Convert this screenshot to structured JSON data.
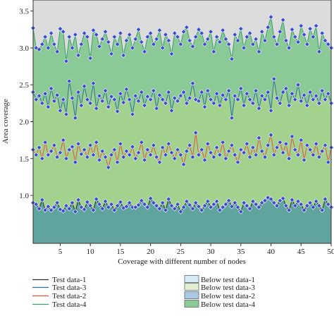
{
  "chart_data": {
    "type": "area",
    "title": "",
    "xlabel": "Coverage with different number of nodes",
    "ylabel": "Area coverage",
    "xlim": [
      0.5,
      50
    ],
    "ylim": [
      0.35,
      3.65
    ],
    "xticks": [
      "5",
      "10",
      "15",
      "20",
      "25",
      "30",
      "35",
      "40",
      "45",
      "50"
    ],
    "yticks": [
      "1.0",
      "1.5",
      "2.0",
      "2.5",
      "3.0",
      "3.5"
    ],
    "grid": false,
    "legend_position": "bottom",
    "background_color": "#dcdcdc",
    "x": [
      0.5,
      1,
      1.5,
      2,
      2.5,
      3,
      3.5,
      4,
      4.5,
      5,
      5.5,
      6,
      6.5,
      7,
      7.5,
      8,
      8.5,
      9,
      9.5,
      10,
      10.5,
      11,
      11.5,
      12,
      12.5,
      13,
      13.5,
      14,
      14.5,
      15,
      15.5,
      16,
      16.5,
      17,
      17.5,
      18,
      18.5,
      19,
      19.5,
      20,
      20.5,
      21,
      21.5,
      22,
      22.5,
      23,
      23.5,
      24,
      24.5,
      25,
      25.5,
      26,
      26.5,
      27,
      27.5,
      28,
      28.5,
      29,
      29.5,
      30,
      30.5,
      31,
      31.5,
      32,
      32.5,
      33,
      33.5,
      34,
      34.5,
      35,
      35.5,
      36,
      36.5,
      37,
      37.5,
      38,
      38.5,
      39,
      39.5,
      40,
      40.5,
      41,
      41.5,
      42,
      42.5,
      43,
      43.5,
      44,
      44.5,
      45,
      45.5,
      46,
      46.5,
      47,
      47.5,
      48,
      48.5,
      49,
      49.5,
      50
    ],
    "series": [
      {
        "name": "Test data-1",
        "line_color": "#2b2b2b",
        "fill_color": "#5fa49d",
        "values": [
          0.9,
          0.88,
          0.82,
          0.94,
          0.8,
          0.85,
          0.8,
          0.84,
          0.9,
          0.81,
          0.79,
          0.86,
          0.82,
          0.9,
          0.78,
          0.94,
          0.84,
          0.81,
          0.91,
          0.86,
          0.8,
          0.95,
          0.88,
          0.82,
          0.92,
          0.84,
          0.88,
          0.8,
          0.86,
          0.91,
          0.83,
          0.85,
          0.9,
          0.84,
          0.84,
          0.87,
          0.93,
          0.88,
          0.84,
          0.96,
          0.9,
          0.86,
          0.82,
          0.9,
          0.8,
          0.95,
          0.86,
          0.82,
          0.88,
          0.78,
          0.84,
          0.92,
          0.87,
          0.82,
          0.9,
          0.85,
          0.8,
          0.86,
          0.92,
          0.84,
          0.88,
          0.92,
          0.8,
          0.84,
          0.88,
          0.93,
          0.85,
          0.9,
          0.84,
          0.78,
          0.9,
          0.86,
          0.82,
          0.92,
          0.88,
          0.84,
          0.9,
          0.93,
          0.97,
          0.95,
          0.9,
          0.86,
          0.93,
          0.96,
          0.86,
          0.8,
          0.94,
          0.86,
          0.92,
          0.88,
          0.8,
          0.86,
          0.9,
          0.84,
          0.92,
          0.86,
          0.8,
          0.95,
          0.88,
          0.84
        ]
      },
      {
        "name": "Test data-3",
        "line_color": "#2d6fa0",
        "fill_color": "#a2d28e",
        "values": [
          2.4,
          2.3,
          2.35,
          2.25,
          2.38,
          2.2,
          2.45,
          2.28,
          2.36,
          2.15,
          2.3,
          2.1,
          2.55,
          2.32,
          2.05,
          2.4,
          2.22,
          2.48,
          2.3,
          2.25,
          2.52,
          2.18,
          2.35,
          2.28,
          2.42,
          2.2,
          2.34,
          2.3,
          2.14,
          2.38,
          2.26,
          2.44,
          2.3,
          2.1,
          2.35,
          2.28,
          2.4,
          2.22,
          2.34,
          2.3,
          2.42,
          2.18,
          2.36,
          2.3,
          2.25,
          2.4,
          2.15,
          2.32,
          2.28,
          2.35,
          2.4,
          2.25,
          2.32,
          2.52,
          2.3,
          2.28,
          2.4,
          2.2,
          2.42,
          2.3,
          2.25,
          2.38,
          2.22,
          2.36,
          2.3,
          2.42,
          2.05,
          2.35,
          2.3,
          2.45,
          2.22,
          2.38,
          2.3,
          2.25,
          2.42,
          2.18,
          2.35,
          2.3,
          2.4,
          2.15,
          2.58,
          2.32,
          2.25,
          2.4,
          2.45,
          2.22,
          2.38,
          2.3,
          2.5,
          2.28,
          2.36,
          2.22,
          2.4,
          2.3,
          2.35,
          2.25,
          2.42,
          2.3,
          2.38,
          2.25
        ]
      },
      {
        "name": "Test data-2",
        "line_color": "#e8553e",
        "fill_color": "#a2d28e",
        "values": [
          1.62,
          1.55,
          1.65,
          1.5,
          1.72,
          1.55,
          1.6,
          1.68,
          1.52,
          1.58,
          1.75,
          1.5,
          1.62,
          1.66,
          1.45,
          1.7,
          1.56,
          1.62,
          1.52,
          1.68,
          1.55,
          1.72,
          1.48,
          1.6,
          1.52,
          1.38,
          1.55,
          1.62,
          1.45,
          1.7,
          1.52,
          1.6,
          1.55,
          1.66,
          1.5,
          1.58,
          1.72,
          1.48,
          1.62,
          1.55,
          1.68,
          1.52,
          1.45,
          1.65,
          1.55,
          1.7,
          1.58,
          1.5,
          1.62,
          1.55,
          1.42,
          1.6,
          1.68,
          1.52,
          1.85,
          1.55,
          1.62,
          1.48,
          1.7,
          1.58,
          1.52,
          1.65,
          1.55,
          1.72,
          1.5,
          1.6,
          1.68,
          1.55,
          1.45,
          1.62,
          1.58,
          1.7,
          1.52,
          1.65,
          1.55,
          1.78,
          1.6,
          1.52,
          1.68,
          1.82,
          1.55,
          1.65,
          1.72,
          1.58,
          1.7,
          1.5,
          1.8,
          1.62,
          1.55,
          1.75,
          1.48,
          1.68,
          1.62,
          1.55,
          1.7,
          1.52,
          1.6,
          1.68,
          1.45,
          1.65
        ]
      },
      {
        "name": "Test data-4",
        "line_color": "#3c9e6e",
        "fill_color": "#8bc996",
        "values": [
          3.27,
          3.0,
          2.98,
          3.05,
          3.15,
          3.0,
          3.2,
          3.05,
          2.95,
          3.26,
          3.22,
          2.82,
          3.15,
          3.0,
          3.18,
          2.9,
          3.05,
          3.2,
          3.15,
          2.86,
          3.24,
          3.18,
          3.02,
          3.12,
          3.22,
          3.08,
          2.92,
          3.15,
          3.05,
          3.2,
          2.9,
          3.1,
          3.18,
          3.0,
          3.12,
          3.25,
          3.08,
          2.95,
          3.15,
          3.2,
          3.05,
          3.12,
          3.24,
          3.0,
          3.18,
          3.1,
          2.92,
          3.2,
          3.15,
          3.05,
          3.22,
          3.28,
          3.1,
          3.02,
          3.15,
          3.25,
          3.2,
          3.05,
          3.12,
          3.22,
          2.95,
          3.15,
          3.08,
          3.24,
          3.12,
          3.05,
          2.85,
          3.18,
          3.1,
          3.26,
          3.0,
          3.15,
          3.2,
          3.05,
          3.12,
          2.95,
          3.22,
          3.1,
          3.28,
          3.42,
          3.15,
          3.05,
          3.22,
          3.38,
          3.1,
          3.0,
          3.25,
          3.15,
          3.08,
          3.3,
          3.18,
          3.05,
          3.26,
          3.15,
          3.3,
          2.95,
          3.2,
          3.1,
          3.05,
          3.0
        ]
      }
    ],
    "legend": {
      "lines": [
        {
          "label": "Test data-1",
          "color": "#2b2b2b"
        },
        {
          "label": "Test data-3",
          "color": "#2d6fa0"
        },
        {
          "label": "Test data-2",
          "color": "#e8553e"
        },
        {
          "label": "Test data-4",
          "color": "#3c9e6e"
        }
      ],
      "areas": [
        {
          "label": "Below test data-1",
          "color": "#d6ecf5"
        },
        {
          "label": "Below test data-3",
          "color": "#dff0d3"
        },
        {
          "label": "Below test data-2",
          "color": "#a9c9e6"
        },
        {
          "label": "Below test data-4",
          "color": "#8bc996"
        }
      ]
    },
    "marker": {
      "fill": "#3f47c8",
      "stroke": "#d4e6f5",
      "shape": "diamond"
    }
  }
}
